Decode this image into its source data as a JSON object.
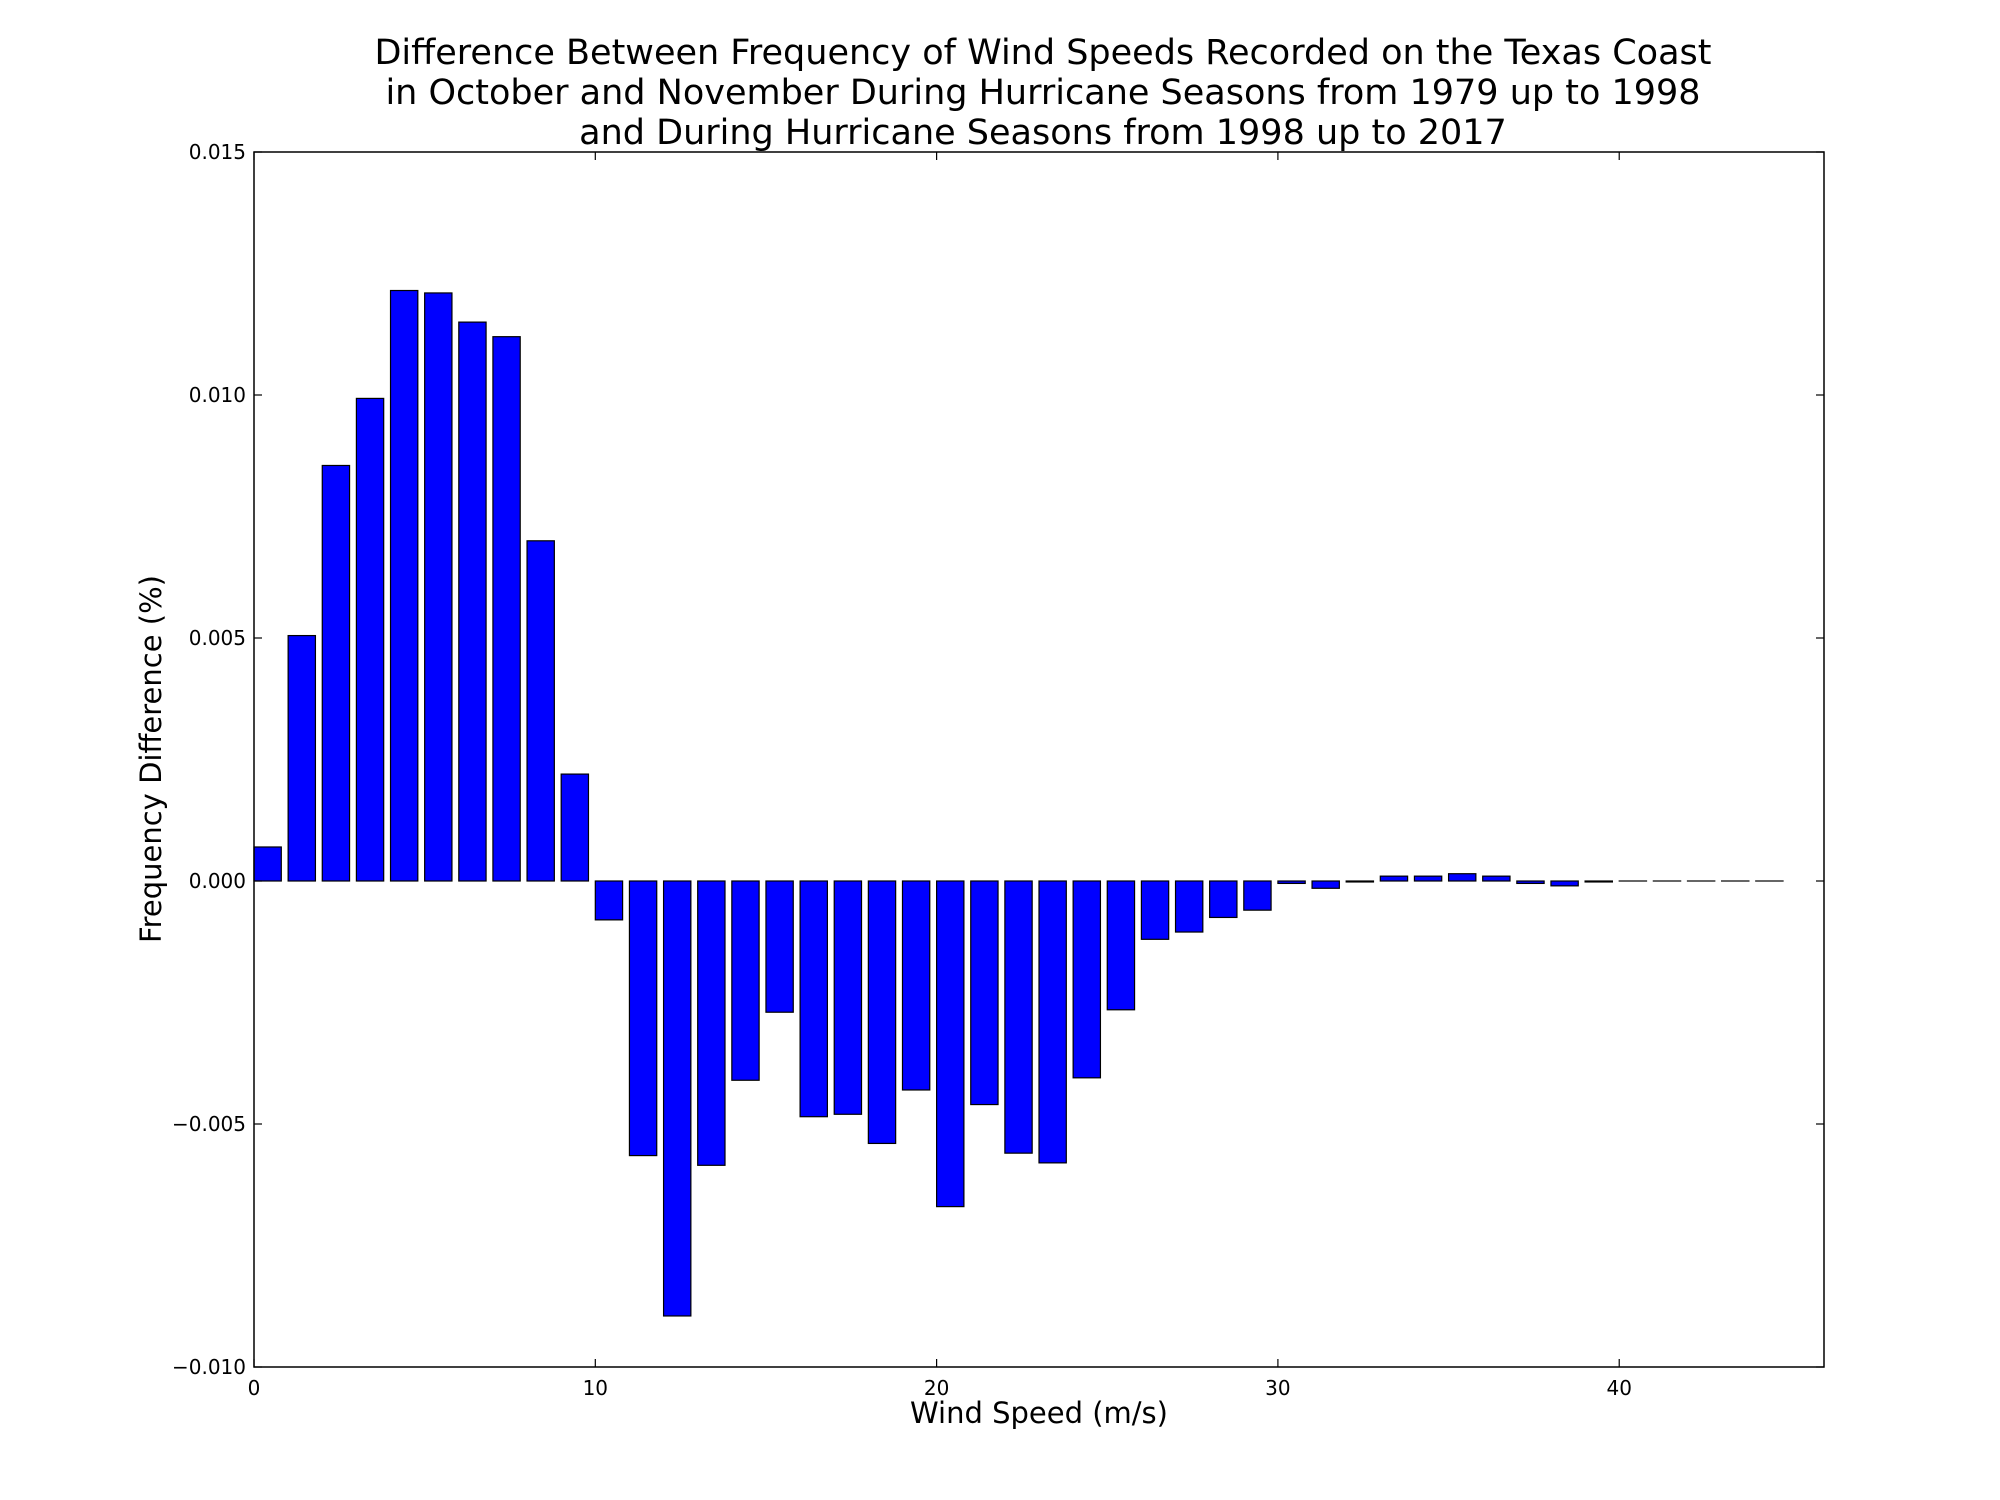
{
  "chart_data": {
    "type": "bar",
    "title_lines": [
      "Difference Between Frequency of Wind Speeds Recorded on the Texas Coast",
      "in October and November During Hurricane Seasons from 1979 up to 1998",
      "and During Hurricane Seasons from 1998 up to 2017"
    ],
    "xlabel": "Wind Speed (m/s)",
    "ylabel": "Frequency Difference (%)",
    "xlim": [
      0,
      46
    ],
    "ylim": [
      -0.01,
      0.015
    ],
    "x_ticks": [
      {
        "value": 0,
        "label": "0"
      },
      {
        "value": 10,
        "label": "10"
      },
      {
        "value": 20,
        "label": "20"
      },
      {
        "value": 30,
        "label": "30"
      },
      {
        "value": 40,
        "label": "40"
      }
    ],
    "y_ticks": [
      {
        "value": 0.015,
        "label": "0.015"
      },
      {
        "value": 0.01,
        "label": "0.010"
      },
      {
        "value": 0.005,
        "label": "0.005"
      },
      {
        "value": 0.0,
        "label": "0.000"
      },
      {
        "value": -0.005,
        "label": "−0.005"
      },
      {
        "value": -0.01,
        "label": "−0.010"
      }
    ],
    "bar_width": 0.8,
    "bar_color": "#0000ff",
    "x": [
      0,
      1,
      2,
      3,
      4,
      5,
      6,
      7,
      8,
      9,
      10,
      11,
      12,
      13,
      14,
      15,
      16,
      17,
      18,
      19,
      20,
      21,
      22,
      23,
      24,
      25,
      26,
      27,
      28,
      29,
      30,
      31,
      32,
      33,
      34,
      35,
      36,
      37,
      38,
      39,
      40,
      41,
      42,
      43,
      44
    ],
    "values": [
      0.0007,
      0.00505,
      0.00855,
      0.00993,
      0.01215,
      0.0121,
      0.0115,
      0.0112,
      0.007,
      0.0022,
      -0.0008,
      -0.00565,
      -0.00895,
      -0.00585,
      -0.0041,
      -0.0027,
      -0.00485,
      -0.0048,
      -0.0054,
      -0.0043,
      -0.0067,
      -0.0046,
      -0.0056,
      -0.0058,
      -0.00405,
      -0.00265,
      -0.0012,
      -0.00105,
      -0.00075,
      -0.0006,
      -5e-05,
      -0.00015,
      -2e-05,
      0.0001,
      0.0001,
      0.00015,
      0.0001,
      -5e-05,
      -0.0001,
      -2e-05,
      0.0,
      0.0,
      0.0,
      0.0,
      0.0
    ],
    "grid": false,
    "legend": false
  }
}
